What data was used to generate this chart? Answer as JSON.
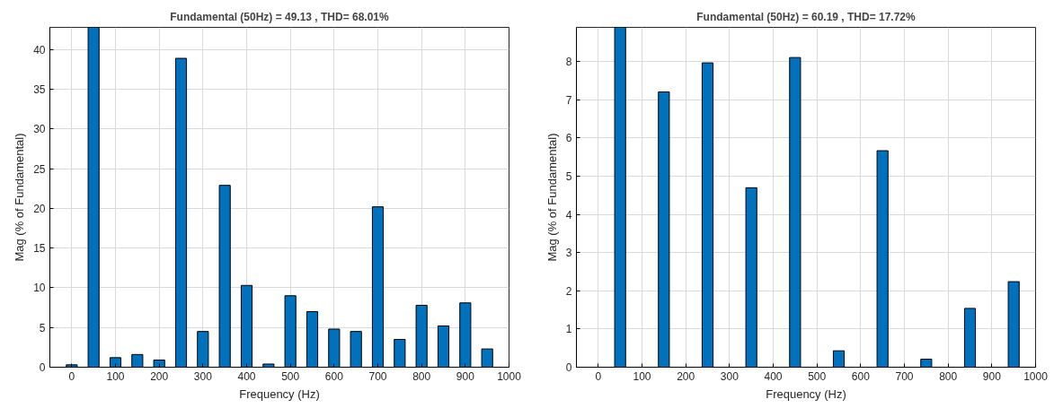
{
  "chart_data": [
    {
      "type": "bar",
      "title": "Fundamental (50Hz) = 49.13 , THD= 68.01%",
      "xlabel": "Frequency (Hz)",
      "ylabel": "Mag (% of Fundamental)",
      "x": [
        0,
        50,
        100,
        150,
        200,
        250,
        300,
        350,
        400,
        450,
        500,
        550,
        600,
        650,
        700,
        750,
        800,
        850,
        900,
        950
      ],
      "series": [
        {
          "color": "#0072bd",
          "values": [
            0.3,
            42.8,
            1.2,
            1.6,
            0.9,
            38.9,
            4.5,
            22.9,
            10.3,
            0.4,
            9.0,
            7.0,
            4.8,
            4.5,
            20.2,
            3.5,
            7.8,
            5.2,
            8.1,
            2.3
          ]
        }
      ],
      "xlim": [
        -50,
        1000
      ],
      "xticks": [
        0,
        100,
        200,
        300,
        400,
        500,
        600,
        700,
        800,
        900,
        1000
      ],
      "ylim": [
        0,
        42.8
      ],
      "yticks": [
        0,
        5,
        10,
        15,
        20,
        25,
        30,
        35,
        40
      ],
      "grid": true
    },
    {
      "type": "bar",
      "title": "Fundamental (50Hz) = 60.19 , THD= 17.72%",
      "xlabel": "Frequency (Hz)",
      "ylabel": "Mag (% of Fundamental)",
      "x": [
        50,
        150,
        250,
        350,
        450,
        550,
        650,
        750,
        850,
        950
      ],
      "series": [
        {
          "color": "#0072bd",
          "values": [
            8.9,
            7.21,
            7.97,
            4.7,
            8.11,
            0.43,
            5.67,
            0.21,
            1.54,
            2.24
          ]
        }
      ],
      "xlim": [
        -50,
        1000
      ],
      "xticks": [
        0,
        100,
        200,
        300,
        400,
        500,
        600,
        700,
        800,
        900,
        1000
      ],
      "ylim": [
        0,
        8.9
      ],
      "yticks": [
        0,
        1,
        2,
        3,
        4,
        5,
        6,
        7,
        8
      ],
      "grid": true
    }
  ]
}
